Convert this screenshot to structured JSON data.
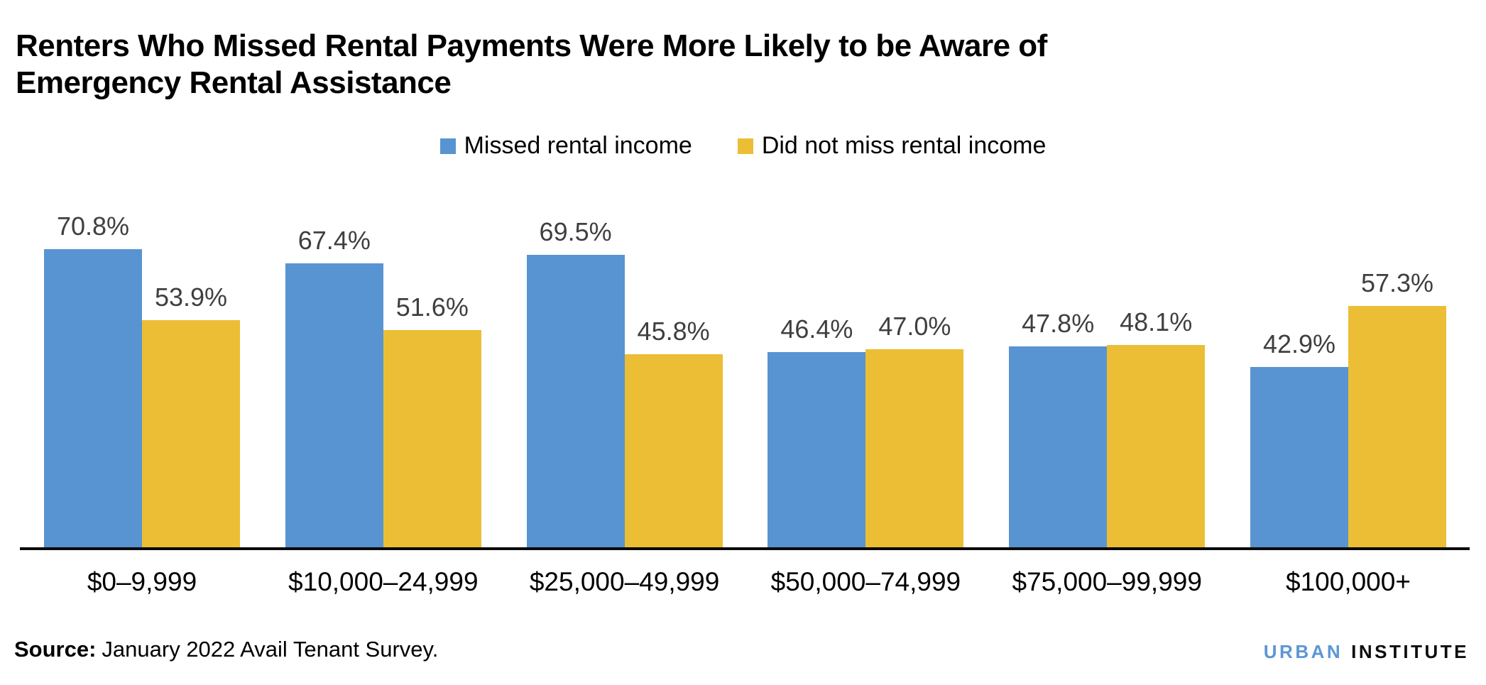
{
  "header": {
    "title": "Renters Who Missed Rental Payments Were More Likely to be Aware of Emergency Rental Assistance",
    "title_lines": [
      "Renters Who Missed Rental Payments Were More Likely to be Aware of",
      "Emergency Rental Assistance"
    ]
  },
  "chart_data": {
    "type": "bar",
    "title": "Renters Who Missed Rental Payments Were More Likely to be Aware of Emergency Rental Assistance",
    "categories": [
      "$0–9,999",
      "$10,000–24,999",
      "$25,000–49,999",
      "$50,000–74,999",
      "$75,000–99,999",
      "$100,000+"
    ],
    "series": [
      {
        "name": "Missed rental income",
        "color": "#5894D1",
        "values": [
          70.8,
          67.4,
          69.5,
          46.4,
          47.8,
          42.9
        ]
      },
      {
        "name": "Did not miss rental income",
        "color": "#ECBE35",
        "values": [
          53.9,
          51.6,
          45.8,
          47.0,
          48.1,
          57.3
        ]
      }
    ],
    "value_suffix": "%",
    "data_labels": true,
    "legend_position": "top-center",
    "ylim": [
      0,
      75
    ],
    "grid": false,
    "ylabel": "",
    "xlabel": ""
  },
  "footer": {
    "source_label": "Source:",
    "source_text": "January 2022 Avail Tenant Survey.",
    "logo": {
      "part1": "URBAN",
      "part2": "INSTITUTE",
      "part1_color": "#5C97D3",
      "part2_color": "#0d0d0d"
    }
  }
}
